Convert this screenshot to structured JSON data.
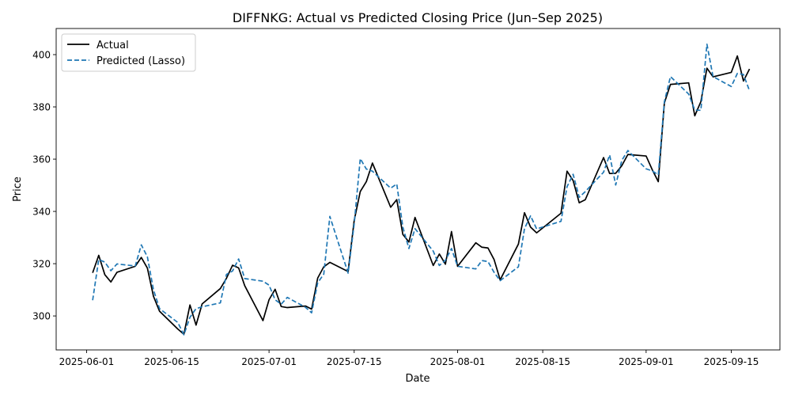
{
  "chart_data": {
    "type": "line",
    "title": "DIFFNKG: Actual vs Predicted Closing Price (Jun–Sep 2025)",
    "xlabel": "Date",
    "ylabel": "Price",
    "x_type": "date",
    "xlim": [
      "2025-05-27",
      "2025-09-23"
    ],
    "ylim": [
      287,
      410
    ],
    "x_ticks": [
      "2025-06-01",
      "2025-06-15",
      "2025-07-01",
      "2025-07-15",
      "2025-08-01",
      "2025-08-15",
      "2025-09-01",
      "2025-09-15"
    ],
    "y_ticks": [
      300,
      320,
      340,
      360,
      380,
      400
    ],
    "grid": false,
    "legend_position": "upper left",
    "series": [
      {
        "name": "Actual",
        "color": "#000000",
        "style": "solid",
        "points": [
          [
            "2025-06-02",
            316.5
          ],
          [
            "2025-06-03",
            323.2
          ],
          [
            "2025-06-04",
            315.8
          ],
          [
            "2025-06-05",
            313.0
          ],
          [
            "2025-06-06",
            316.7
          ],
          [
            "2025-06-09",
            319.0
          ],
          [
            "2025-06-10",
            322.4
          ],
          [
            "2025-06-11",
            318.3
          ],
          [
            "2025-06-12",
            307.5
          ],
          [
            "2025-06-13",
            301.8
          ],
          [
            "2025-06-16",
            295.0
          ],
          [
            "2025-06-17",
            293.0
          ],
          [
            "2025-06-18",
            304.2
          ],
          [
            "2025-06-19",
            296.5
          ],
          [
            "2025-06-20",
            304.6
          ],
          [
            "2025-06-23",
            310.5
          ],
          [
            "2025-06-24",
            314.4
          ],
          [
            "2025-06-25",
            319.4
          ],
          [
            "2025-06-26",
            318.4
          ],
          [
            "2025-06-27",
            311.6
          ],
          [
            "2025-06-30",
            298.2
          ],
          [
            "2025-07-01",
            306.2
          ],
          [
            "2025-07-02",
            310.2
          ],
          [
            "2025-07-03",
            303.6
          ],
          [
            "2025-07-04",
            303.2
          ],
          [
            "2025-07-07",
            303.8
          ],
          [
            "2025-07-08",
            302.6
          ],
          [
            "2025-07-09",
            314.5
          ],
          [
            "2025-07-10",
            318.8
          ],
          [
            "2025-07-11",
            320.5
          ],
          [
            "2025-07-14",
            317.0
          ],
          [
            "2025-07-15",
            336.5
          ],
          [
            "2025-07-16",
            347.6
          ],
          [
            "2025-07-17",
            351.4
          ],
          [
            "2025-07-18",
            358.5
          ],
          [
            "2025-07-21",
            341.6
          ],
          [
            "2025-07-22",
            344.5
          ],
          [
            "2025-07-23",
            331.2
          ],
          [
            "2025-07-24",
            328.3
          ],
          [
            "2025-07-25",
            337.7
          ],
          [
            "2025-07-28",
            319.3
          ],
          [
            "2025-07-29",
            323.7
          ],
          [
            "2025-07-30",
            319.8
          ],
          [
            "2025-07-31",
            332.3
          ],
          [
            "2025-08-01",
            319.0
          ],
          [
            "2025-08-04",
            328.0
          ],
          [
            "2025-08-05",
            326.3
          ],
          [
            "2025-08-06",
            326.0
          ],
          [
            "2025-08-07",
            321.6
          ],
          [
            "2025-08-08",
            313.8
          ],
          [
            "2025-08-11",
            327.5
          ],
          [
            "2025-08-12",
            339.5
          ],
          [
            "2025-08-13",
            334.0
          ],
          [
            "2025-08-14",
            331.8
          ],
          [
            "2025-08-18",
            339.3
          ],
          [
            "2025-08-19",
            355.4
          ],
          [
            "2025-08-20",
            351.8
          ],
          [
            "2025-08-21",
            343.3
          ],
          [
            "2025-08-22",
            344.5
          ],
          [
            "2025-08-25",
            360.6
          ],
          [
            "2025-08-26",
            354.5
          ],
          [
            "2025-08-27",
            354.6
          ],
          [
            "2025-08-28",
            357.5
          ],
          [
            "2025-08-29",
            361.8
          ],
          [
            "2025-09-01",
            361.2
          ],
          [
            "2025-09-02",
            356.0
          ],
          [
            "2025-09-03",
            351.4
          ],
          [
            "2025-09-04",
            381.5
          ],
          [
            "2025-09-05",
            388.6
          ],
          [
            "2025-09-08",
            389.2
          ],
          [
            "2025-09-09",
            376.6
          ],
          [
            "2025-09-10",
            382.0
          ],
          [
            "2025-09-11",
            394.8
          ],
          [
            "2025-09-12",
            391.5
          ],
          [
            "2025-09-15",
            393.2
          ],
          [
            "2025-09-16",
            399.5
          ],
          [
            "2025-09-17",
            389.9
          ],
          [
            "2025-09-18",
            394.5
          ]
        ]
      },
      {
        "name": "Predicted (Lasso)",
        "color": "#1f77b4",
        "style": "dashed",
        "points": [
          [
            "2025-06-02",
            306.0
          ],
          [
            "2025-06-03",
            321.6
          ],
          [
            "2025-06-04",
            320.6
          ],
          [
            "2025-06-05",
            317.3
          ],
          [
            "2025-06-06",
            319.9
          ],
          [
            "2025-06-09",
            319.1
          ],
          [
            "2025-06-10",
            327.2
          ],
          [
            "2025-06-11",
            322.6
          ],
          [
            "2025-06-12",
            310.0
          ],
          [
            "2025-06-13",
            302.8
          ],
          [
            "2025-06-16",
            297.5
          ],
          [
            "2025-06-17",
            292.8
          ],
          [
            "2025-06-18",
            299.5
          ],
          [
            "2025-06-19",
            302.8
          ],
          [
            "2025-06-20",
            303.5
          ],
          [
            "2025-06-23",
            305.0
          ],
          [
            "2025-06-24",
            315.9
          ],
          [
            "2025-06-25",
            317.2
          ],
          [
            "2025-06-26",
            321.8
          ],
          [
            "2025-06-27",
            314.3
          ],
          [
            "2025-06-30",
            313.3
          ],
          [
            "2025-07-01",
            311.8
          ],
          [
            "2025-07-02",
            306.2
          ],
          [
            "2025-07-03",
            304.5
          ],
          [
            "2025-07-04",
            307.1
          ],
          [
            "2025-07-07",
            303.3
          ],
          [
            "2025-07-08",
            301.2
          ],
          [
            "2025-07-09",
            312.7
          ],
          [
            "2025-07-10",
            316.0
          ],
          [
            "2025-07-11",
            338.1
          ],
          [
            "2025-07-14",
            316.4
          ],
          [
            "2025-07-15",
            335.2
          ],
          [
            "2025-07-16",
            360.2
          ],
          [
            "2025-07-17",
            356.2
          ],
          [
            "2025-07-18",
            355.4
          ],
          [
            "2025-07-21",
            348.9
          ],
          [
            "2025-07-22",
            350.5
          ],
          [
            "2025-07-23",
            334.0
          ],
          [
            "2025-07-24",
            325.8
          ],
          [
            "2025-07-25",
            333.4
          ],
          [
            "2025-07-28",
            324.8
          ],
          [
            "2025-07-29",
            319.3
          ],
          [
            "2025-07-30",
            321.3
          ],
          [
            "2025-07-31",
            325.8
          ],
          [
            "2025-08-01",
            319.0
          ],
          [
            "2025-08-04",
            318.0
          ],
          [
            "2025-08-05",
            321.2
          ],
          [
            "2025-08-06",
            320.8
          ],
          [
            "2025-08-07",
            316.7
          ],
          [
            "2025-08-08",
            313.5
          ],
          [
            "2025-08-11",
            318.8
          ],
          [
            "2025-08-12",
            333.4
          ],
          [
            "2025-08-13",
            338.3
          ],
          [
            "2025-08-14",
            333.3
          ],
          [
            "2025-08-18",
            336.2
          ],
          [
            "2025-08-19",
            349.5
          ],
          [
            "2025-08-20",
            354.2
          ],
          [
            "2025-08-21",
            345.4
          ],
          [
            "2025-08-22",
            347.6
          ],
          [
            "2025-08-25",
            355.0
          ],
          [
            "2025-08-26",
            361.6
          ],
          [
            "2025-08-27",
            350.1
          ],
          [
            "2025-08-28",
            359.5
          ],
          [
            "2025-08-29",
            363.3
          ],
          [
            "2025-09-01",
            356.3
          ],
          [
            "2025-09-02",
            355.5
          ],
          [
            "2025-09-03",
            354.0
          ],
          [
            "2025-09-04",
            382.0
          ],
          [
            "2025-09-05",
            391.6
          ],
          [
            "2025-09-08",
            384.9
          ],
          [
            "2025-09-09",
            378.8
          ],
          [
            "2025-09-10",
            378.7
          ],
          [
            "2025-09-11",
            404.0
          ],
          [
            "2025-09-12",
            391.6
          ],
          [
            "2025-09-15",
            387.8
          ],
          [
            "2025-09-16",
            392.8
          ],
          [
            "2025-09-17",
            392.4
          ],
          [
            "2025-09-18",
            386.2
          ]
        ]
      }
    ]
  }
}
